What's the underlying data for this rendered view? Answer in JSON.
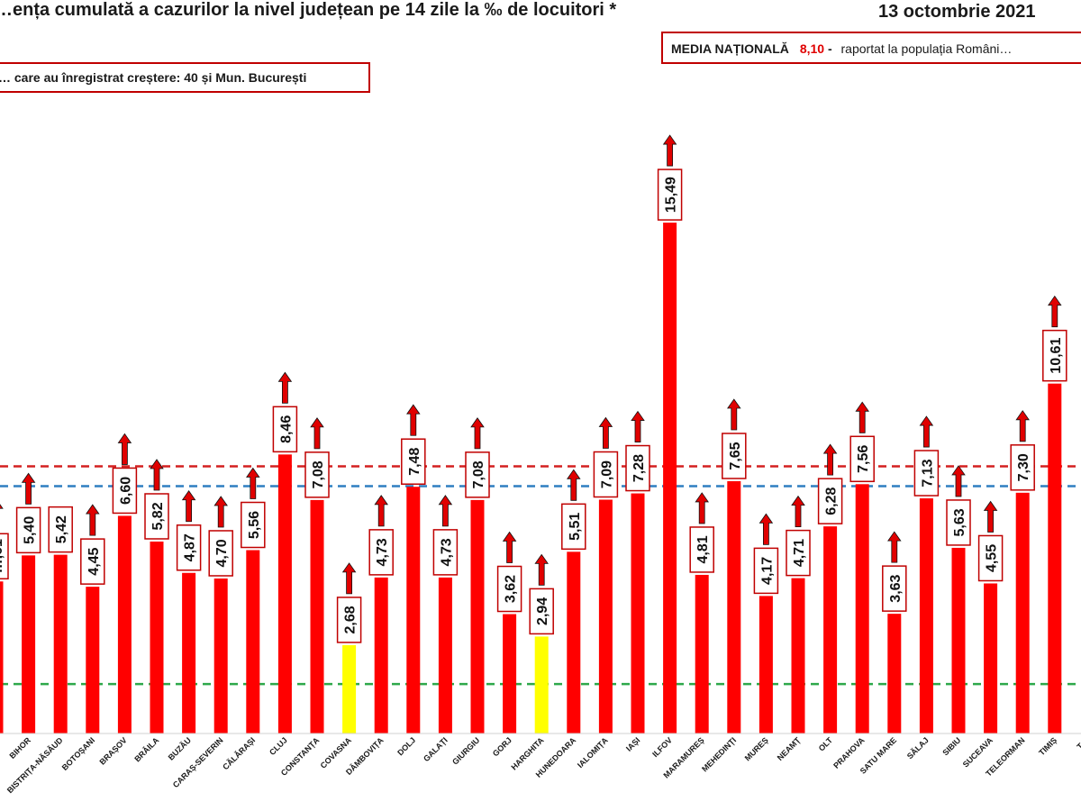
{
  "chart_data": {
    "type": "bar",
    "title": "…ența cumulată a cazurilor la nivel județean pe 14 zile la ‰ de locuitori *",
    "date": "13 octombrie 2021",
    "national_label": "MEDIA NAȚIONALĂ",
    "national_value_text": "8,10",
    "national_dash": " - ",
    "national_note": "raportat la populația Români…",
    "increase_note": "… care au înregistrat creștere:  40 și Mun. București",
    "national_average": 8.1,
    "ylim": [
      0,
      20
    ],
    "threshold_lines": [
      {
        "value": 8.1,
        "color": "#d42020"
      },
      {
        "value": 7.5,
        "color": "#2f7fc1"
      },
      {
        "value": 1.5,
        "color": "#2ea84a"
      }
    ],
    "colors": {
      "bar_default": "#ff0000",
      "bar_low": "#ffff00",
      "arrow": "#e00000",
      "label_border": "#c00000",
      "accent_value": "#e00000"
    },
    "categories": [
      "…",
      "BIHOR",
      "BISTRIȚA-NĂSĂUD",
      "BOTOȘANI",
      "BRAȘOV",
      "BRĂILA",
      "BUZĂU",
      "CARAȘ-SEVERIN",
      "CĂLĂRAȘI",
      "CLUJ",
      "CONSTANȚA",
      "COVASNA",
      "DÂMBOVIȚA",
      "DOLJ",
      "GALAȚI",
      "GIURGIU",
      "GORJ",
      "HARGHITA",
      "HUNEDOARA",
      "IALOMIȚA",
      "IAȘI",
      "ILFOV",
      "MARAMUREȘ",
      "MEHEDINȚI",
      "MUREȘ",
      "NEAMȚ",
      "OLT",
      "PRAHOVA",
      "SATU MARE",
      "SĂLAJ",
      "SIBIU",
      "SUCEAVA",
      "TELEORMAN",
      "TIMIȘ",
      "T…"
    ],
    "values": [
      4.61,
      5.4,
      5.42,
      4.45,
      6.6,
      5.82,
      4.87,
      4.7,
      5.56,
      8.46,
      7.08,
      2.68,
      4.73,
      7.48,
      4.73,
      7.08,
      3.62,
      2.94,
      5.51,
      7.09,
      7.28,
      15.49,
      4.81,
      7.65,
      4.17,
      4.71,
      6.28,
      7.56,
      3.63,
      7.13,
      5.63,
      4.55,
      7.3,
      10.61,
      0
    ],
    "labels": [
      "…,61",
      "5,40",
      "5,42",
      "4,45",
      "6,60",
      "5,82",
      "4,87",
      "4,70",
      "5,56",
      "8,46",
      "7,08",
      "2,68",
      "4,73",
      "7,48",
      "4,73",
      "7,08",
      "3,62",
      "2,94",
      "5,51",
      "7,09",
      "7,28",
      "15,49",
      "4,81",
      "7,65",
      "4,17",
      "4,71",
      "6,28",
      "7,56",
      "3,63",
      "7,13",
      "5,63",
      "4,55",
      "7,30",
      "10,61",
      ""
    ],
    "bar_colors": [
      "default",
      "default",
      "default",
      "default",
      "default",
      "default",
      "default",
      "default",
      "default",
      "default",
      "default",
      "low",
      "default",
      "default",
      "default",
      "default",
      "default",
      "low",
      "default",
      "default",
      "default",
      "default",
      "default",
      "default",
      "default",
      "default",
      "default",
      "default",
      "default",
      "default",
      "default",
      "default",
      "default",
      "default",
      "default"
    ],
    "increase": [
      true,
      true,
      false,
      true,
      true,
      true,
      true,
      true,
      true,
      true,
      true,
      true,
      true,
      true,
      true,
      true,
      true,
      true,
      true,
      true,
      true,
      true,
      true,
      true,
      true,
      true,
      true,
      true,
      true,
      true,
      true,
      true,
      true,
      true,
      false
    ]
  }
}
